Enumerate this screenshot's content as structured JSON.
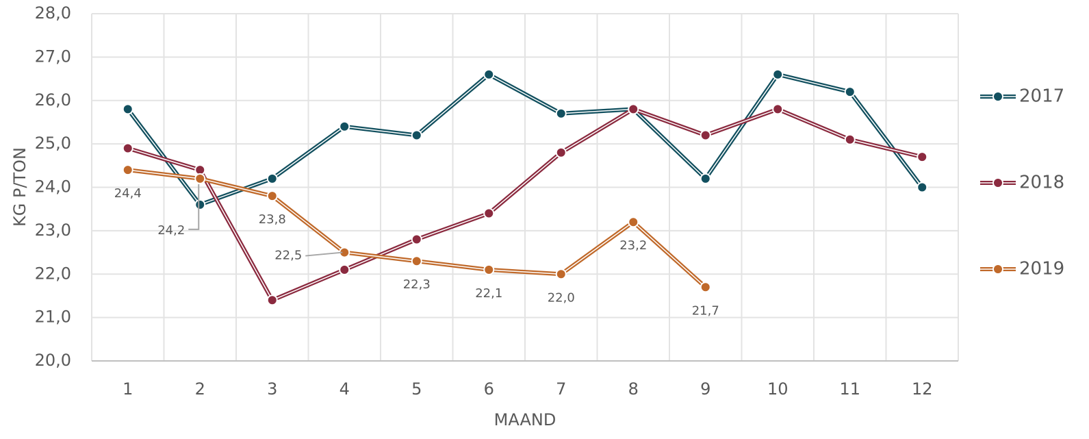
{
  "chart_data": {
    "type": "line",
    "x_label": "MAAND",
    "y_label": "KG P/TON",
    "categories": [
      "1",
      "2",
      "3",
      "4",
      "5",
      "6",
      "7",
      "8",
      "9",
      "10",
      "11",
      "12"
    ],
    "series": [
      {
        "name": "2017",
        "color": "#12505f",
        "values": [
          25.8,
          23.6,
          24.2,
          25.4,
          25.2,
          26.6,
          25.7,
          25.8,
          24.2,
          26.6,
          26.2,
          24.0
        ]
      },
      {
        "name": "2018",
        "color": "#8b2a3f",
        "values": [
          24.9,
          24.4,
          21.4,
          22.1,
          22.8,
          23.4,
          24.8,
          25.8,
          25.2,
          25.8,
          25.1,
          24.7
        ]
      },
      {
        "name": "2019",
        "color": "#c0692a",
        "values": [
          24.4,
          24.2,
          23.8,
          22.5,
          22.3,
          22.1,
          22.0,
          23.2,
          21.7,
          null,
          null,
          null
        ],
        "value_labels": [
          "24,4",
          "24,2",
          "23,8",
          "22,5",
          "22,3",
          "22,1",
          "22,0",
          "23,2",
          "21,7",
          null,
          null,
          null
        ]
      }
    ],
    "ylim": [
      20,
      28
    ],
    "yticks": [
      {
        "value": 20,
        "label": "20,0"
      },
      {
        "value": 21,
        "label": "21,0"
      },
      {
        "value": 22,
        "label": "22,0"
      },
      {
        "value": 23,
        "label": "23,0"
      },
      {
        "value": 24,
        "label": "24,0"
      },
      {
        "value": 25,
        "label": "25,0"
      },
      {
        "value": 26,
        "label": "26,0"
      },
      {
        "value": 27,
        "label": "27,0"
      },
      {
        "value": 28,
        "label": "28,0"
      }
    ],
    "grid": true,
    "legend": "right"
  }
}
